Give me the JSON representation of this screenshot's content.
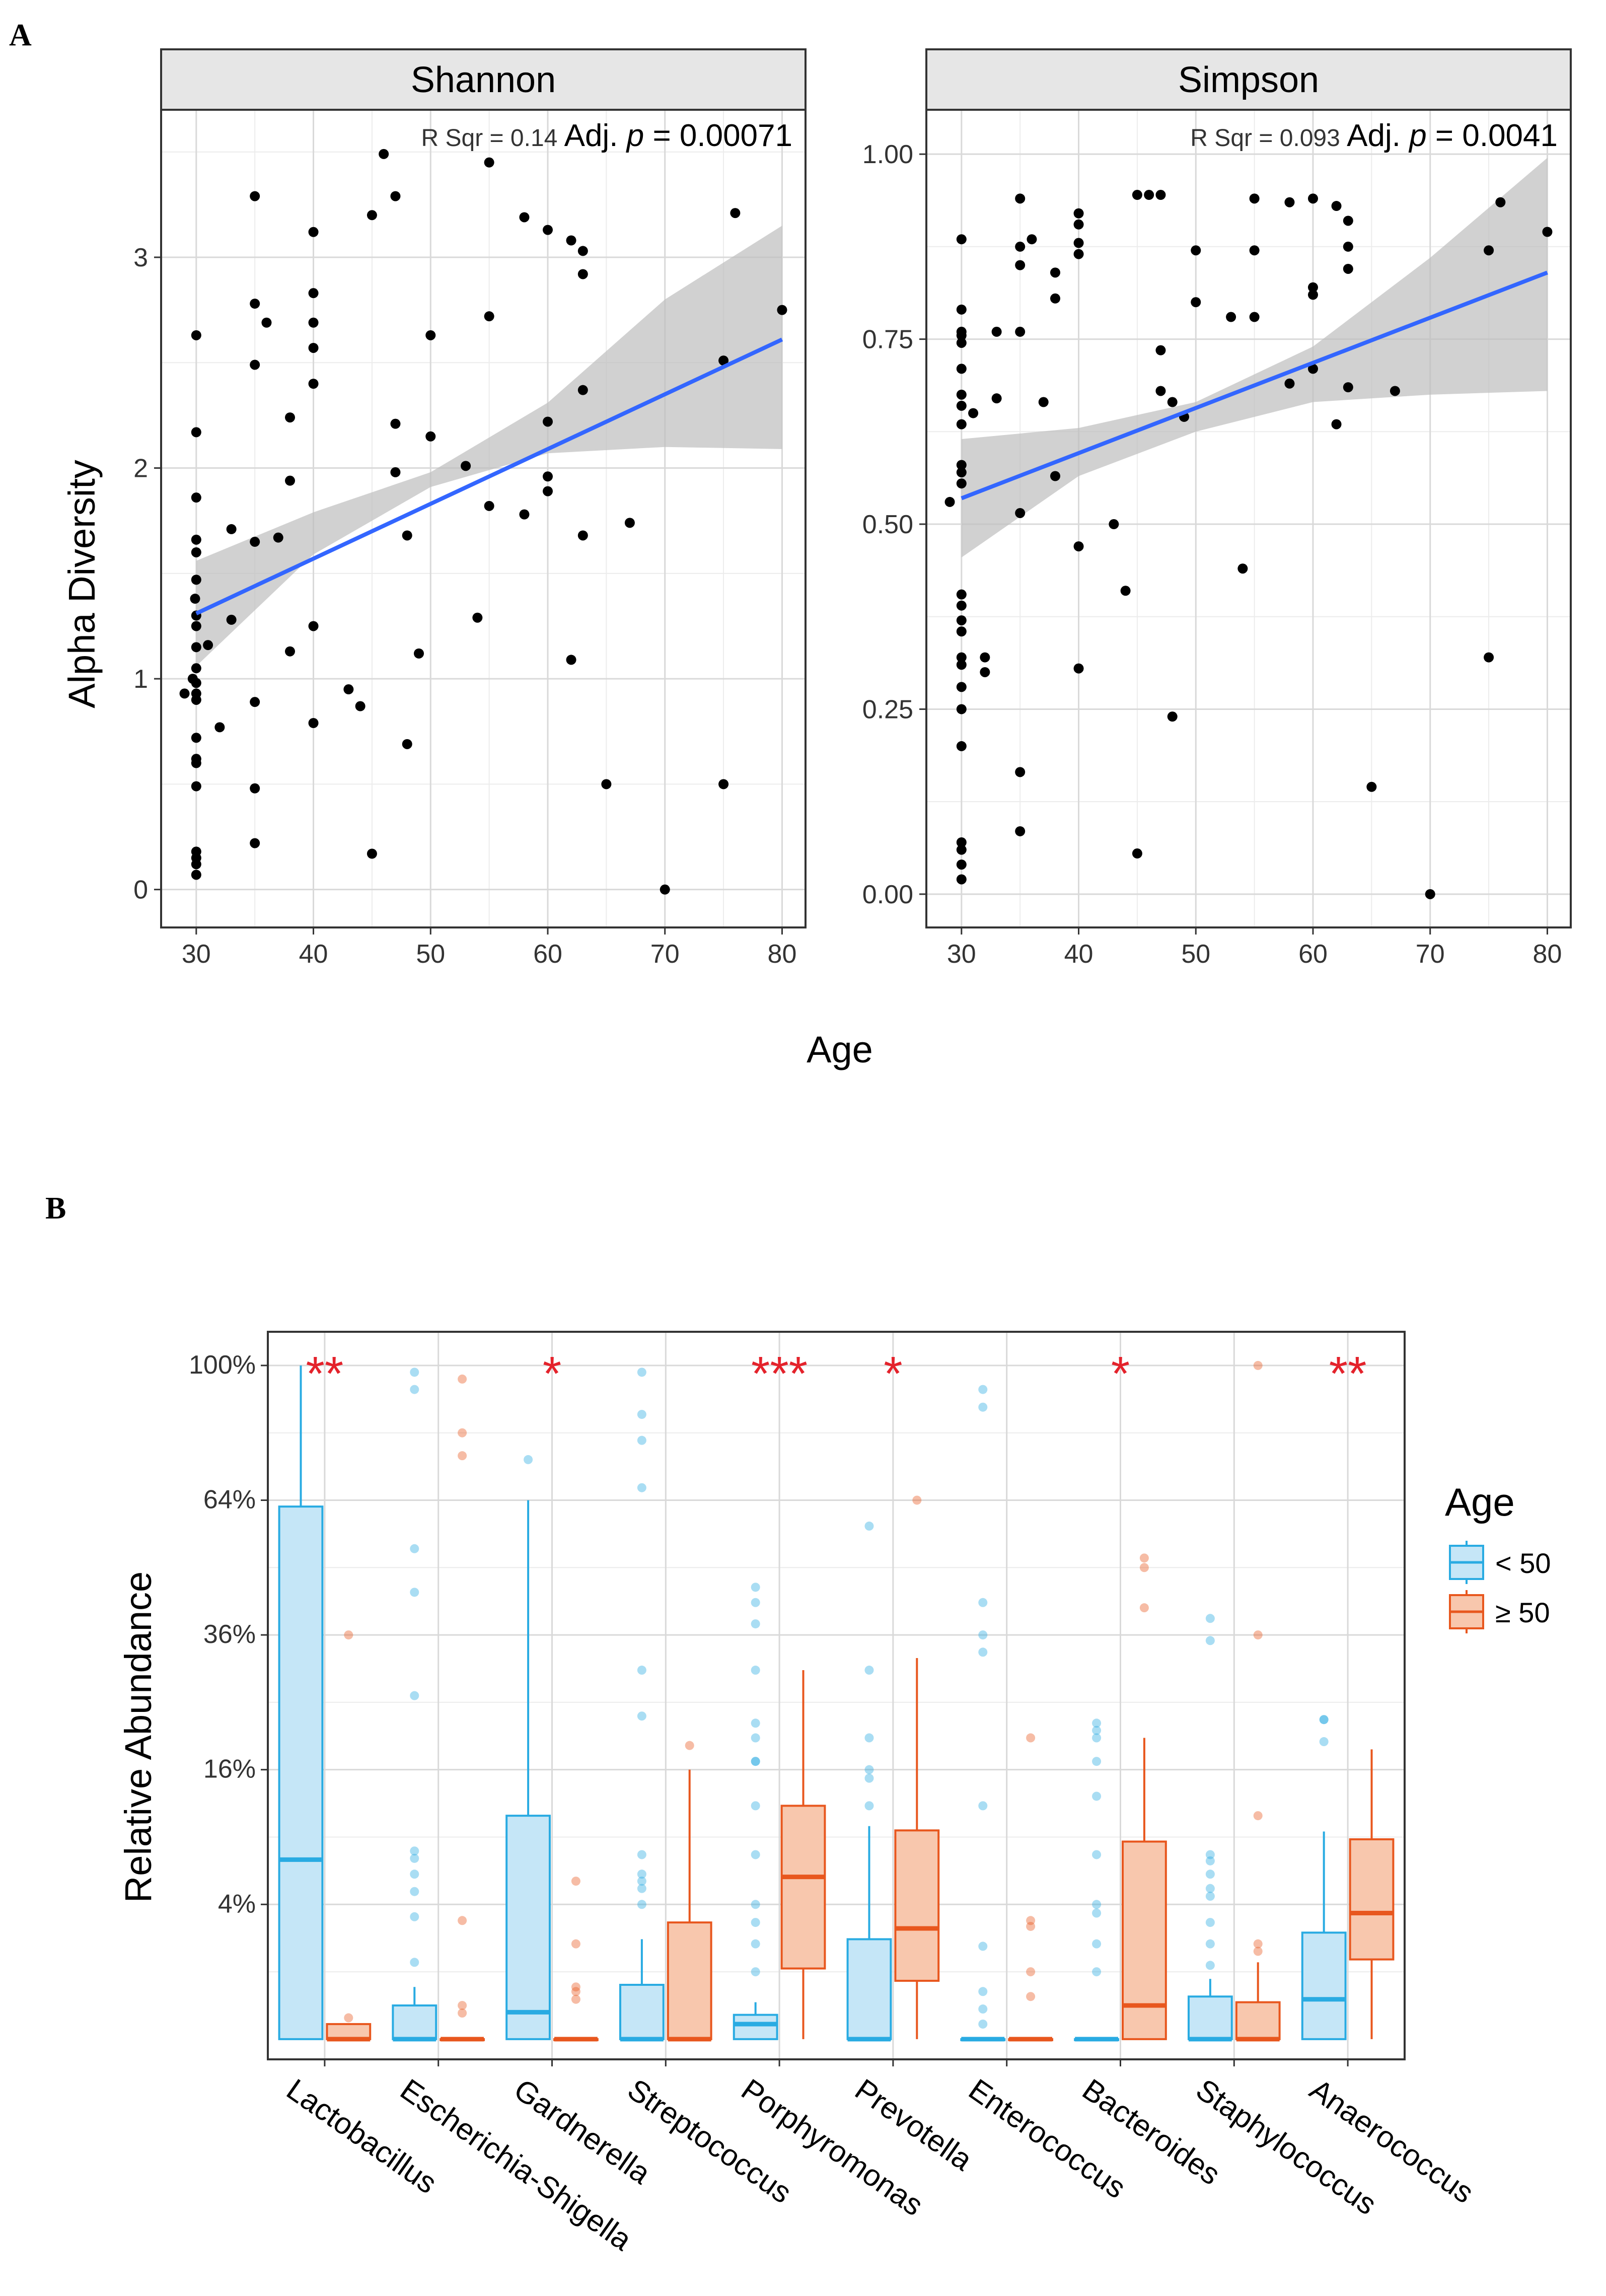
{
  "panel_labels": {
    "a": "A",
    "b": "B"
  },
  "colors": {
    "point": "#000000",
    "fit_line": "#3366ff",
    "ribbon": "#bdbdbd",
    "group1": "#29abe2",
    "group1_fill": "#c5e6f7",
    "group2": "#e8571e",
    "group2_fill": "#f8c7ad",
    "significance": "#e4222b",
    "grid": "#d9d9d9",
    "strip_fill": "#e6e6e6"
  },
  "chart_data": [
    {
      "type": "scatter",
      "title": "Shannon",
      "xlabel": "Age",
      "ylabel": "Alpha Diversity",
      "xlim": [
        27,
        82
      ],
      "ylim": [
        -0.18,
        3.7
      ],
      "xticks": [
        30,
        40,
        50,
        60,
        70,
        80
      ],
      "yticks": [
        0,
        1,
        2,
        3
      ],
      "stat": {
        "r_label": "R Sqr = ",
        "r_value": "0.14",
        "p_label": "Adj. ",
        "p_symbol": "p",
        "p_value": " = 0.00071"
      },
      "fit": {
        "x": [
          30,
          80
        ],
        "y": [
          1.31,
          2.61
        ]
      },
      "ribbon": {
        "x": [
          30,
          40,
          50,
          60,
          70,
          80
        ],
        "lower": [
          1.06,
          1.59,
          1.91,
          2.07,
          2.1,
          2.09
        ],
        "upper": [
          1.56,
          1.79,
          1.98,
          2.31,
          2.8,
          3.15
        ]
      },
      "points": [
        [
          29,
          0.93
        ],
        [
          29.7,
          1.0
        ],
        [
          29.9,
          1.38
        ],
        [
          30,
          2.63
        ],
        [
          30,
          2.17
        ],
        [
          30,
          1.86
        ],
        [
          30,
          1.66
        ],
        [
          30,
          1.6
        ],
        [
          30,
          1.47
        ],
        [
          30,
          1.3
        ],
        [
          30,
          1.25
        ],
        [
          30,
          1.15
        ],
        [
          30,
          1.05
        ],
        [
          30,
          0.98
        ],
        [
          30,
          0.93
        ],
        [
          30,
          0.9
        ],
        [
          30,
          0.72
        ],
        [
          30,
          0.62
        ],
        [
          30,
          0.6
        ],
        [
          30,
          0.49
        ],
        [
          30,
          0.18
        ],
        [
          30,
          0.15
        ],
        [
          30,
          0.12
        ],
        [
          30,
          0.07
        ],
        [
          31,
          1.16
        ],
        [
          32,
          0.77
        ],
        [
          33,
          1.71
        ],
        [
          33,
          1.28
        ],
        [
          35,
          3.29
        ],
        [
          35,
          2.78
        ],
        [
          35,
          2.49
        ],
        [
          35,
          1.65
        ],
        [
          35,
          0.89
        ],
        [
          35,
          0.48
        ],
        [
          35,
          0.22
        ],
        [
          36,
          2.69
        ],
        [
          37,
          1.67
        ],
        [
          38,
          2.24
        ],
        [
          38,
          1.94
        ],
        [
          38,
          1.13
        ],
        [
          40,
          3.12
        ],
        [
          40,
          2.83
        ],
        [
          40,
          2.69
        ],
        [
          40,
          2.57
        ],
        [
          40,
          2.4
        ],
        [
          40,
          1.25
        ],
        [
          40,
          0.79
        ],
        [
          43,
          0.95
        ],
        [
          44,
          0.87
        ],
        [
          45,
          3.2
        ],
        [
          45,
          0.17
        ],
        [
          46,
          3.49
        ],
        [
          47,
          3.29
        ],
        [
          47,
          2.21
        ],
        [
          47,
          1.98
        ],
        [
          48,
          1.68
        ],
        [
          48,
          0.69
        ],
        [
          49,
          1.12
        ],
        [
          50,
          2.63
        ],
        [
          50,
          2.15
        ],
        [
          53,
          2.01
        ],
        [
          54,
          1.29
        ],
        [
          55,
          3.45
        ],
        [
          55,
          2.72
        ],
        [
          55,
          1.82
        ],
        [
          58,
          3.19
        ],
        [
          58,
          1.78
        ],
        [
          60,
          3.13
        ],
        [
          60,
          2.22
        ],
        [
          60,
          1.96
        ],
        [
          60,
          1.89
        ],
        [
          62,
          3.08
        ],
        [
          62,
          1.09
        ],
        [
          63,
          3.03
        ],
        [
          63,
          2.92
        ],
        [
          63,
          2.37
        ],
        [
          63,
          1.68
        ],
        [
          65,
          0.5
        ],
        [
          67,
          1.74
        ],
        [
          70,
          0.0
        ],
        [
          75,
          2.51
        ],
        [
          75,
          0.5
        ],
        [
          76,
          3.21
        ],
        [
          80,
          2.75
        ]
      ]
    },
    {
      "type": "scatter",
      "title": "Simpson",
      "xlabel": "Age",
      "ylabel": "Alpha Diversity",
      "xlim": [
        27,
        82
      ],
      "ylim": [
        -0.045,
        1.06
      ],
      "xticks": [
        30,
        40,
        50,
        60,
        70,
        80
      ],
      "yticks": [
        0.0,
        0.25,
        0.5,
        0.75,
        1.0
      ],
      "ytick_labels": [
        "0.00",
        "0.25",
        "0.50",
        "0.75",
        "1.00"
      ],
      "stat": {
        "r_label": "R Sqr = ",
        "r_value": "0.093",
        "p_label": "Adj. ",
        "p_symbol": "p",
        "p_value": " = 0.0041"
      },
      "fit": {
        "x": [
          30,
          80
        ],
        "y": [
          0.535,
          0.84
        ]
      },
      "ribbon": {
        "x": [
          30,
          40,
          50,
          60,
          70,
          80
        ],
        "lower": [
          0.455,
          0.565,
          0.625,
          0.665,
          0.675,
          0.68
        ],
        "upper": [
          0.615,
          0.63,
          0.665,
          0.74,
          0.86,
          0.995
        ]
      },
      "points": [
        [
          29,
          0.53
        ],
        [
          30,
          0.885
        ],
        [
          30,
          0.79
        ],
        [
          30,
          0.76
        ],
        [
          30,
          0.755
        ],
        [
          30,
          0.745
        ],
        [
          30,
          0.71
        ],
        [
          30,
          0.675
        ],
        [
          30,
          0.66
        ],
        [
          30,
          0.635
        ],
        [
          30,
          0.58
        ],
        [
          30,
          0.57
        ],
        [
          30,
          0.555
        ],
        [
          30,
          0.405
        ],
        [
          30,
          0.39
        ],
        [
          30,
          0.37
        ],
        [
          30,
          0.355
        ],
        [
          30,
          0.32
        ],
        [
          30,
          0.31
        ],
        [
          30,
          0.28
        ],
        [
          30,
          0.25
        ],
        [
          30,
          0.2
        ],
        [
          30,
          0.07
        ],
        [
          30,
          0.06
        ],
        [
          30,
          0.04
        ],
        [
          30,
          0.02
        ],
        [
          31,
          0.65
        ],
        [
          32,
          0.32
        ],
        [
          32,
          0.3
        ],
        [
          33,
          0.76
        ],
        [
          33,
          0.67
        ],
        [
          35,
          0.94
        ],
        [
          35,
          0.875
        ],
        [
          35,
          0.85
        ],
        [
          35,
          0.76
        ],
        [
          35,
          0.515
        ],
        [
          35,
          0.165
        ],
        [
          35,
          0.085
        ],
        [
          36,
          0.885
        ],
        [
          37,
          0.665
        ],
        [
          38,
          0.84
        ],
        [
          38,
          0.805
        ],
        [
          38,
          0.565
        ],
        [
          40,
          0.92
        ],
        [
          40,
          0.905
        ],
        [
          40,
          0.88
        ],
        [
          40,
          0.865
        ],
        [
          40,
          0.47
        ],
        [
          40,
          0.305
        ],
        [
          43,
          0.5
        ],
        [
          44,
          0.41
        ],
        [
          45,
          0.945
        ],
        [
          45,
          0.055
        ],
        [
          46,
          0.945
        ],
        [
          47,
          0.945
        ],
        [
          47,
          0.735
        ],
        [
          47,
          0.68
        ],
        [
          48,
          0.665
        ],
        [
          48,
          0.24
        ],
        [
          49,
          0.645
        ],
        [
          50,
          0.87
        ],
        [
          50,
          0.8
        ],
        [
          53,
          0.78
        ],
        [
          54,
          0.44
        ],
        [
          55,
          0.94
        ],
        [
          55,
          0.87
        ],
        [
          55,
          0.78
        ],
        [
          58,
          0.935
        ],
        [
          58,
          0.69
        ],
        [
          60,
          0.94
        ],
        [
          60,
          0.82
        ],
        [
          60,
          0.81
        ],
        [
          60,
          0.71
        ],
        [
          62,
          0.93
        ],
        [
          62,
          0.635
        ],
        [
          63,
          0.91
        ],
        [
          63,
          0.875
        ],
        [
          63,
          0.845
        ],
        [
          63,
          0.685
        ],
        [
          65,
          0.145
        ],
        [
          67,
          0.68
        ],
        [
          70,
          0.0
        ],
        [
          75,
          0.87
        ],
        [
          75,
          0.32
        ],
        [
          76,
          0.935
        ],
        [
          80,
          0.895
        ]
      ]
    },
    {
      "type": "box",
      "title": "",
      "xlabel": "",
      "ylabel": "Relative Abundance",
      "yscale": "sqrt",
      "ylim": [
        -0.03,
        1.05
      ],
      "yticks": [
        0.04,
        0.16,
        0.36,
        0.64,
        1.0
      ],
      "ytick_labels": [
        "4%",
        "16%",
        "36%",
        "64%",
        "100%"
      ],
      "categories": [
        "Lactobacillus",
        "Escherichia-Shigella",
        "Gardnerella",
        "Streptococcus",
        "Porphyromonas",
        "Prevotella",
        "Enterococcus",
        "Bacteroides",
        "Staphylococcus",
        "Anaerococcus"
      ],
      "significance": [
        "**",
        "",
        "*",
        "",
        "***",
        "*",
        "",
        "*",
        "",
        "**"
      ],
      "legend": {
        "title": "Age",
        "entries": [
          "< 50",
          "≥ 50"
        ]
      },
      "series": [
        {
          "name": "< 50",
          "boxes": [
            {
              "q1": 0.0,
              "median": 0.071,
              "q3": 0.625,
              "whisker_low": 0.0,
              "whisker_high": 1.0,
              "outliers": []
            },
            {
              "q1": 0.0,
              "median": 0.0,
              "q3": 0.0025,
              "whisker_low": 0.0,
              "whisker_high": 0.006,
              "outliers": [
                0.013,
                0.033,
                0.048,
                0.06,
                0.072,
                0.078,
                0.26,
                0.44,
                0.53,
                0.93,
                0.98
              ]
            },
            {
              "q1": 0.0,
              "median": 0.0016,
              "q3": 0.11,
              "whisker_low": 0.0,
              "whisker_high": 0.64,
              "outliers": [
                0.74
              ]
            },
            {
              "q1": 0.0,
              "median": 0.0,
              "q3": 0.0065,
              "whisker_low": 0.0,
              "whisker_high": 0.022,
              "outliers": [
                0.04,
                0.05,
                0.055,
                0.06,
                0.075,
                0.23,
                0.3,
                0.67,
                0.79,
                0.86,
                0.98
              ]
            },
            {
              "q1": 0.0,
              "median": 0.0005,
              "q3": 0.0013,
              "whisker_low": 0.0,
              "whisker_high": 0.003,
              "outliers": [
                0.01,
                0.02,
                0.03,
                0.04,
                0.075,
                0.12,
                0.17,
                0.17,
                0.2,
                0.22,
                0.3,
                0.38,
                0.42,
                0.45
              ]
            },
            {
              "q1": 0.0,
              "median": 0.0,
              "q3": 0.022,
              "whisker_low": 0.0,
              "whisker_high": 0.1,
              "outliers": [
                0.12,
                0.15,
                0.16,
                0.2,
                0.3,
                0.58
              ]
            },
            {
              "q1": 0.0,
              "median": 0.0,
              "q3": 0.0,
              "whisker_low": 0.0,
              "whisker_high": 0.0,
              "outliers": [
                0.0005,
                0.002,
                0.005,
                0.019,
                0.12,
                0.33,
                0.36,
                0.42,
                0.88,
                0.93
              ]
            },
            {
              "q1": 0.0,
              "median": 0.0,
              "q3": 0.0,
              "whisker_low": 0.0,
              "whisker_high": 0.0,
              "outliers": [
                0.01,
                0.02,
                0.035,
                0.04,
                0.075,
                0.13,
                0.17,
                0.2,
                0.21,
                0.22
              ]
            },
            {
              "q1": 0.0,
              "median": 0.0,
              "q3": 0.004,
              "whisker_low": 0.0,
              "whisker_high": 0.008,
              "outliers": [
                0.012,
                0.02,
                0.03,
                0.045,
                0.05,
                0.06,
                0.07,
                0.075,
                0.35,
                0.39
              ]
            },
            {
              "q1": 0.0,
              "median": 0.0035,
              "q3": 0.025,
              "whisker_low": 0.0,
              "whisker_high": 0.095,
              "outliers": [
                0.195,
                0.225,
                0.225
              ]
            }
          ]
        },
        {
          "name": "≥ 50",
          "boxes": [
            {
              "q1": 0.0,
              "median": 0.0,
              "q3": 0.0005,
              "whisker_low": 0.0,
              "whisker_high": 0.0005,
              "outliers": [
                0.001,
                0.36
              ]
            },
            {
              "q1": 0.0,
              "median": 0.0,
              "q3": 0.0,
              "whisker_low": 0.0,
              "whisker_high": 0.0,
              "outliers": [
                0.0015,
                0.0025,
                0.031,
                0.75,
                0.81,
                0.96
              ]
            },
            {
              "q1": 0.0,
              "median": 0.0,
              "q3": 0.0,
              "whisker_low": 0.0,
              "whisker_high": 0.0,
              "outliers": [
                0.0035,
                0.005,
                0.006,
                0.02,
                0.055
              ]
            },
            {
              "q1": 0.0,
              "median": 0.0,
              "q3": 0.03,
              "whisker_low": 0.0,
              "whisker_high": 0.16,
              "outliers": [
                0.19
              ]
            },
            {
              "q1": 0.011,
              "median": 0.058,
              "q3": 0.12,
              "whisker_low": 0.0,
              "whisker_high": 0.3,
              "outliers": []
            },
            {
              "q1": 0.0075,
              "median": 0.027,
              "q3": 0.096,
              "whisker_low": 0.0,
              "whisker_high": 0.32,
              "outliers": [
                0.64
              ]
            },
            {
              "q1": 0.0,
              "median": 0.0,
              "q3": 0.0,
              "whisker_low": 0.0,
              "whisker_high": 0.0,
              "outliers": [
                0.004,
                0.01,
                0.028,
                0.031,
                0.2
              ]
            },
            {
              "q1": 0.0,
              "median": 0.0025,
              "q3": 0.086,
              "whisker_low": 0.0,
              "whisker_high": 0.2,
              "outliers": [
                0.41,
                0.49,
                0.51
              ]
            },
            {
              "q1": 0.0,
              "median": 0.0,
              "q3": 0.003,
              "whisker_low": 0.0,
              "whisker_high": 0.013,
              "outliers": [
                0.017,
                0.02,
                0.11,
                0.36,
                1.0
              ]
            },
            {
              "q1": 0.014,
              "median": 0.035,
              "q3": 0.088,
              "whisker_low": 0.0,
              "whisker_high": 0.185,
              "outliers": []
            }
          ]
        }
      ]
    }
  ]
}
